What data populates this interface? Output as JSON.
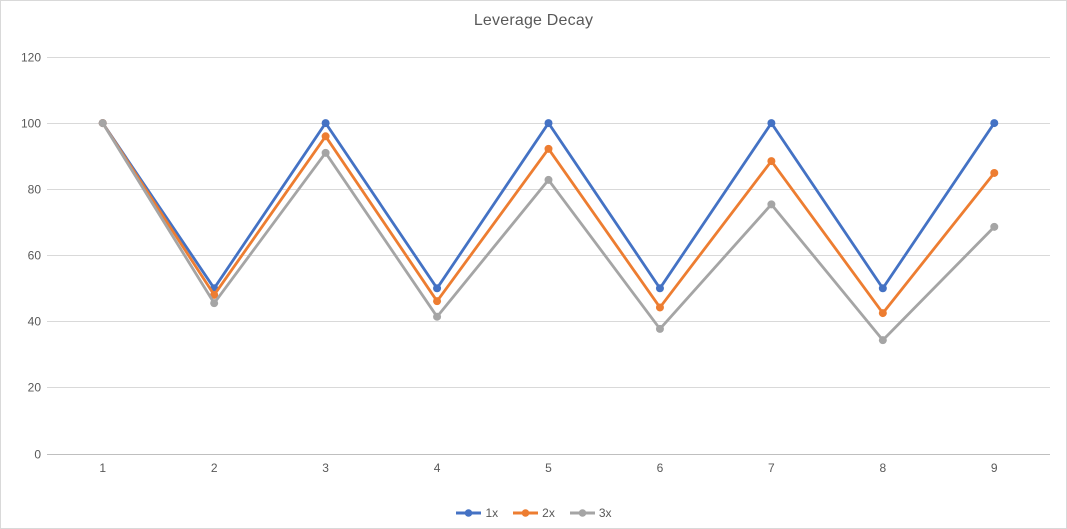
{
  "window": {
    "background_color": "#FFFFFF",
    "border_color": "#D9D9D9"
  },
  "chart_data": {
    "type": "line",
    "title": "Leverage Decay",
    "xlabel": "",
    "ylabel": "",
    "categories": [
      1,
      2,
      3,
      4,
      5,
      6,
      7,
      8,
      9
    ],
    "series": [
      {
        "name": "1x",
        "color": "#4472C4",
        "values": [
          100,
          50,
          100,
          50,
          100,
          50,
          100,
          50,
          100
        ]
      },
      {
        "name": "2x",
        "color": "#ED7D31",
        "values": [
          100,
          48,
          96,
          46.1,
          92.2,
          44.2,
          88.5,
          42.5,
          84.9
        ]
      },
      {
        "name": "3x",
        "color": "#A5A5A5",
        "values": [
          100,
          45.5,
          91,
          41.4,
          82.8,
          37.7,
          75.4,
          34.3,
          68.6
        ]
      }
    ],
    "ylim": [
      0,
      120
    ],
    "yticks": [
      0,
      20,
      40,
      60,
      80,
      100,
      120
    ],
    "grid": true,
    "legend_position": "bottom",
    "marker": "circle",
    "styles": {
      "text_color": "#595959",
      "gridline_color": "#D9D9D9",
      "axis_line_color": "#BFBFBF",
      "line_width": 2.8,
      "marker_radius": 4
    }
  }
}
